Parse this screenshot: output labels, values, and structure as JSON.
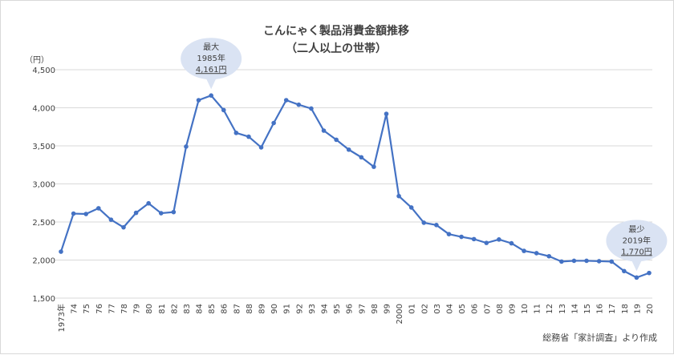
{
  "chart_data": {
    "type": "line",
    "title": "こんにゃく製品消費金額推移",
    "subtitle": "（二人以上の世帯）",
    "unit_label": "（円）",
    "source": "総務省「家計調査」より作成",
    "xlabel": "",
    "ylabel": "",
    "ylim": [
      1500,
      4500
    ],
    "y_ticks": [
      1500,
      2000,
      2500,
      3000,
      3500,
      4000,
      4500
    ],
    "y_tick_labels": [
      "1,500",
      "2,000",
      "2,500",
      "3,000",
      "3,500",
      "4,000",
      "4,500"
    ],
    "grid": true,
    "line_color": "#4472c4",
    "categories": [
      "1973年",
      "74",
      "75",
      "76",
      "77",
      "78",
      "79",
      "80",
      "81",
      "82",
      "83",
      "84",
      "85",
      "86",
      "87",
      "88",
      "89",
      "90",
      "91",
      "92",
      "93",
      "94",
      "95",
      "96",
      "97",
      "98",
      "99",
      "2000",
      "01",
      "02",
      "03",
      "04",
      "05",
      "06",
      "07",
      "08",
      "09",
      "10",
      "11",
      "12",
      "13",
      "14",
      "15",
      "16",
      "17",
      "18",
      "19",
      "20"
    ],
    "series": [
      {
        "name": "",
        "values": [
          2110,
          2610,
          2605,
          2680,
          2530,
          2430,
          2620,
          2745,
          2615,
          2630,
          3490,
          4100,
          4161,
          3970,
          3670,
          3620,
          3480,
          3800,
          4100,
          4040,
          3990,
          3700,
          3580,
          3450,
          3350,
          3225,
          3920,
          2840,
          2690,
          2490,
          2460,
          2340,
          2305,
          2275,
          2225,
          2270,
          2220,
          2120,
          2090,
          2050,
          1980,
          1990,
          1990,
          1985,
          1980,
          1855,
          1770,
          1830
        ]
      }
    ],
    "annotations": [
      {
        "category": "85",
        "label": "最大",
        "year": "1985年",
        "value_text": "4,161円"
      },
      {
        "category": "19",
        "label": "最少",
        "year": "2019年",
        "value_text": "1,770円"
      }
    ]
  }
}
